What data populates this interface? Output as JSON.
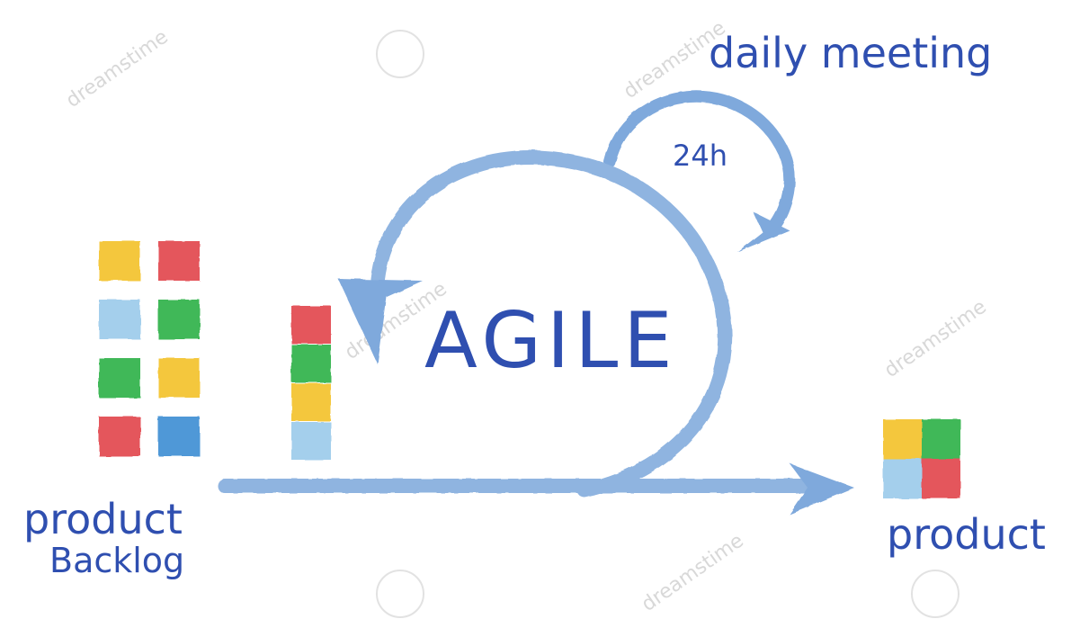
{
  "labels": {
    "title": "AGILE",
    "daily_meeting": "daily meeting",
    "cycle_time": "24h",
    "backlog_line1": "product",
    "backlog_line2": "Backlog",
    "output": "product"
  },
  "watermark": "dreamstime",
  "colors": {
    "ink": "#2f4fb0",
    "arrow": "#8fb4e0",
    "arrow_dark": "#6f98cf",
    "yellow": "#f3c22b",
    "red": "#e2474f",
    "light_blue": "#9ccbea",
    "green": "#2fb24a",
    "blue": "#3f8fd4"
  },
  "backlog_items": [
    {
      "color": "yellow",
      "icon": "yellow-square"
    },
    {
      "color": "red",
      "icon": "red-square"
    },
    {
      "color": "light_blue",
      "icon": "light-blue-square"
    },
    {
      "color": "green",
      "icon": "green-square"
    },
    {
      "color": "green",
      "icon": "green-square"
    },
    {
      "color": "yellow",
      "icon": "yellow-square"
    },
    {
      "color": "red",
      "icon": "red-square"
    },
    {
      "color": "blue",
      "icon": "blue-square"
    }
  ],
  "sprint_items": [
    {
      "color": "red"
    },
    {
      "color": "green"
    },
    {
      "color": "yellow"
    },
    {
      "color": "light_blue"
    }
  ],
  "product_items": [
    {
      "color": "yellow"
    },
    {
      "color": "green"
    },
    {
      "color": "light_blue"
    },
    {
      "color": "red"
    }
  ]
}
